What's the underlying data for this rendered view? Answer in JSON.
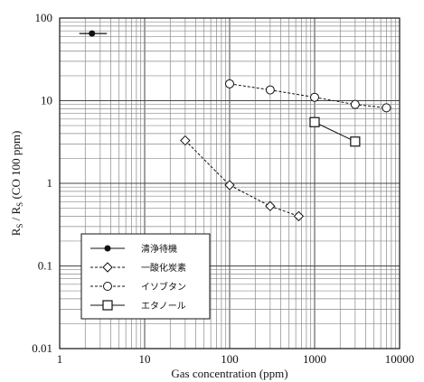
{
  "chart_data": {
    "type": "line",
    "xscale": "log",
    "yscale": "log",
    "xlim": [
      1,
      10000
    ],
    "ylim": [
      0.01,
      100
    ],
    "xlabel": "Gas concentration (ppm)",
    "ylabel": "RS / RS (CO 100 ppm)",
    "ylabel_parts": {
      "r1": "R",
      "s1": "S",
      "slash": " / ",
      "r2": "R",
      "s2": "S",
      "rest": " (CO 100 ppm)"
    },
    "x_ticks": [
      {
        "value": 1,
        "label": "1"
      },
      {
        "value": 10,
        "label": "10"
      },
      {
        "value": 100,
        "label": "100"
      },
      {
        "value": 1000,
        "label": "1000"
      },
      {
        "value": 10000,
        "label": "10000"
      }
    ],
    "y_ticks": [
      {
        "value": 0.01,
        "label": "0.01"
      },
      {
        "value": 0.1,
        "label": "0.1"
      },
      {
        "value": 1,
        "label": "1"
      },
      {
        "value": 10,
        "label": "10"
      },
      {
        "value": 100,
        "label": "100"
      }
    ],
    "grid": true,
    "legend_position": "bottom-left",
    "series": [
      {
        "name": "清浄待機",
        "marker": "filled-circle",
        "line": "none",
        "x": [
          2.4
        ],
        "y": [
          65
        ],
        "xerr_low": [
          1.7
        ],
        "xerr_high": [
          3.6
        ]
      },
      {
        "name": "一酸化炭素",
        "marker": "diamond",
        "line": "dashed",
        "x": [
          30,
          100,
          300,
          650
        ],
        "y": [
          3.3,
          0.95,
          0.53,
          0.4
        ]
      },
      {
        "name": "イソブタン",
        "marker": "open-circle",
        "line": "dashed",
        "x": [
          100,
          300,
          1000,
          3000,
          7000
        ],
        "y": [
          16,
          13.5,
          11,
          9,
          8.2
        ]
      },
      {
        "name": "エタノール",
        "marker": "square",
        "line": "solid",
        "x": [
          1000,
          3000
        ],
        "y": [
          5.5,
          3.2
        ]
      }
    ]
  }
}
